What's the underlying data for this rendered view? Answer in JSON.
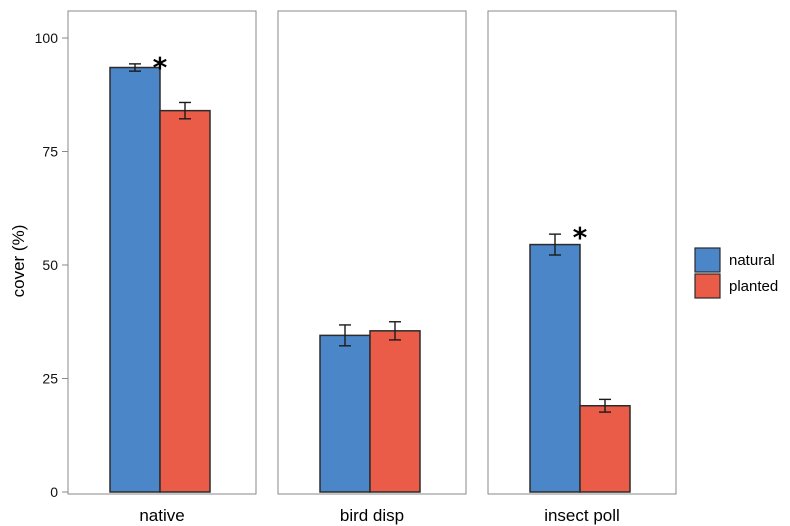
{
  "chart_data": {
    "type": "bar",
    "ylabel": "cover (%)",
    "ylim": [
      0,
      105
    ],
    "yticks": [
      0,
      25,
      50,
      75,
      100
    ],
    "grid": false,
    "legend_position": "right",
    "categories": [
      "native",
      "bird disp",
      "insect poll"
    ],
    "series": [
      {
        "name": "natural",
        "color": "#4a86c8",
        "values": [
          93.5,
          34.5,
          54.5
        ],
        "errors": [
          0.8,
          2.3,
          2.3
        ]
      },
      {
        "name": "planted",
        "color": "#ea5c47",
        "values": [
          84.0,
          35.5,
          19.0
        ],
        "errors": [
          1.8,
          2.0,
          1.4
        ]
      }
    ],
    "significance": [
      "*",
      "",
      "*"
    ]
  }
}
